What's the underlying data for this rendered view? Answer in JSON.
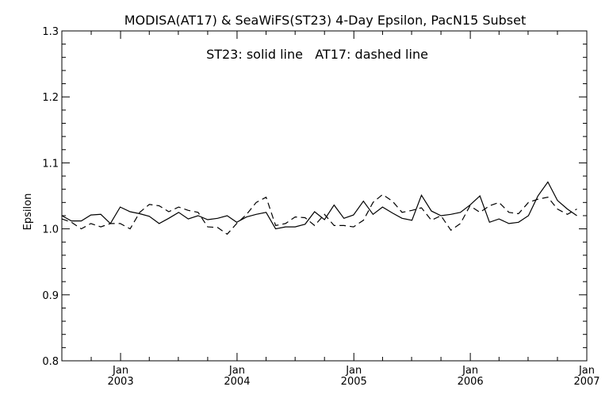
{
  "chart_data": {
    "type": "line",
    "title": "MODISA(AT17) & SeaWiFS(ST23) 4-Day Epsilon, PacN15 Subset",
    "annotation": "ST23: solid line   AT17: dashed line",
    "xlabel": "",
    "ylabel": "Epsilon",
    "xlim": [
      "2002-07-01",
      "2007-01-01"
    ],
    "ylim": [
      0.8,
      1.3
    ],
    "y_ticks": [
      "0.8",
      "0.9",
      "1.0",
      "1.1",
      "1.2",
      "1.3"
    ],
    "x_ticks": [
      {
        "date": "2003-01-01",
        "month": "Jan",
        "year": "2003"
      },
      {
        "date": "2004-01-01",
        "month": "Jan",
        "year": "2004"
      },
      {
        "date": "2005-01-01",
        "month": "Jan",
        "year": "2005"
      },
      {
        "date": "2006-01-01",
        "month": "Jan",
        "year": "2006"
      },
      {
        "date": "2007-01-01",
        "month": "Jan",
        "year": "2007"
      }
    ],
    "grid": false,
    "series": [
      {
        "name": "ST23",
        "style": "solid",
        "color": "#000000",
        "points": [
          [
            "2002-07-01",
            1.02
          ],
          [
            "2002-07-31",
            1.012
          ],
          [
            "2002-08-31",
            1.012
          ],
          [
            "2002-09-30",
            1.021
          ],
          [
            "2002-10-31",
            1.022
          ],
          [
            "2002-11-30",
            1.008
          ],
          [
            "2002-12-31",
            1.033
          ],
          [
            "2003-01-31",
            1.026
          ],
          [
            "2003-03-02",
            1.023
          ],
          [
            "2003-04-01",
            1.019
          ],
          [
            "2003-05-02",
            1.008
          ],
          [
            "2003-06-01",
            1.016
          ],
          [
            "2003-07-02",
            1.025
          ],
          [
            "2003-08-01",
            1.015
          ],
          [
            "2003-09-01",
            1.02
          ],
          [
            "2003-10-01",
            1.014
          ],
          [
            "2003-11-01",
            1.016
          ],
          [
            "2003-12-01",
            1.02
          ],
          [
            "2003-12-31",
            1.01
          ],
          [
            "2004-01-31",
            1.018
          ],
          [
            "2004-03-01",
            1.022
          ],
          [
            "2004-04-01",
            1.025
          ],
          [
            "2004-05-01",
            1.0
          ],
          [
            "2004-06-01",
            1.003
          ],
          [
            "2004-07-01",
            1.003
          ],
          [
            "2004-08-01",
            1.007
          ],
          [
            "2004-08-31",
            1.026
          ],
          [
            "2004-10-01",
            1.014
          ],
          [
            "2004-10-31",
            1.036
          ],
          [
            "2004-12-01",
            1.016
          ],
          [
            "2004-12-31",
            1.021
          ],
          [
            "2005-01-31",
            1.042
          ],
          [
            "2005-03-02",
            1.022
          ],
          [
            "2005-04-01",
            1.033
          ],
          [
            "2005-05-02",
            1.024
          ],
          [
            "2005-06-01",
            1.016
          ],
          [
            "2005-07-02",
            1.013
          ],
          [
            "2005-08-01",
            1.051
          ],
          [
            "2005-09-01",
            1.027
          ],
          [
            "2005-10-01",
            1.02
          ],
          [
            "2005-11-01",
            1.022
          ],
          [
            "2005-12-01",
            1.025
          ],
          [
            "2005-12-31",
            1.036
          ],
          [
            "2006-01-31",
            1.05
          ],
          [
            "2006-03-02",
            1.01
          ],
          [
            "2006-04-01",
            1.015
          ],
          [
            "2006-05-02",
            1.008
          ],
          [
            "2006-06-01",
            1.01
          ],
          [
            "2006-07-02",
            1.02
          ],
          [
            "2006-08-01",
            1.05
          ],
          [
            "2006-09-01",
            1.071
          ],
          [
            "2006-10-01",
            1.043
          ],
          [
            "2006-11-01",
            1.03
          ],
          [
            "2006-12-01",
            1.02
          ]
        ]
      },
      {
        "name": "AT17",
        "style": "dashed",
        "color": "#000000",
        "points": [
          [
            "2002-07-01",
            1.015
          ],
          [
            "2002-07-31",
            1.01
          ],
          [
            "2002-08-31",
            1.0
          ],
          [
            "2002-09-30",
            1.008
          ],
          [
            "2002-10-31",
            1.003
          ],
          [
            "2002-11-30",
            1.008
          ],
          [
            "2002-12-31",
            1.008
          ],
          [
            "2003-01-31",
            1.0
          ],
          [
            "2003-03-02",
            1.025
          ],
          [
            "2003-04-01",
            1.037
          ],
          [
            "2003-05-02",
            1.035
          ],
          [
            "2003-06-01",
            1.026
          ],
          [
            "2003-07-02",
            1.033
          ],
          [
            "2003-08-01",
            1.028
          ],
          [
            "2003-09-01",
            1.025
          ],
          [
            "2003-10-01",
            1.003
          ],
          [
            "2003-11-01",
            1.002
          ],
          [
            "2003-12-01",
            0.992
          ],
          [
            "2003-12-31",
            1.008
          ],
          [
            "2004-01-31",
            1.022
          ],
          [
            "2004-03-01",
            1.04
          ],
          [
            "2004-04-01",
            1.048
          ],
          [
            "2004-05-01",
            1.005
          ],
          [
            "2004-06-01",
            1.008
          ],
          [
            "2004-07-01",
            1.018
          ],
          [
            "2004-08-01",
            1.017
          ],
          [
            "2004-08-31",
            1.005
          ],
          [
            "2004-10-01",
            1.022
          ],
          [
            "2004-10-31",
            1.005
          ],
          [
            "2004-12-01",
            1.005
          ],
          [
            "2004-12-31",
            1.003
          ],
          [
            "2005-01-31",
            1.013
          ],
          [
            "2005-03-02",
            1.04
          ],
          [
            "2005-04-01",
            1.052
          ],
          [
            "2005-05-02",
            1.042
          ],
          [
            "2005-06-01",
            1.025
          ],
          [
            "2005-07-02",
            1.028
          ],
          [
            "2005-08-01",
            1.032
          ],
          [
            "2005-09-01",
            1.013
          ],
          [
            "2005-10-01",
            1.02
          ],
          [
            "2005-11-01",
            0.998
          ],
          [
            "2005-12-01",
            1.008
          ],
          [
            "2005-12-31",
            1.035
          ],
          [
            "2006-01-31",
            1.025
          ],
          [
            "2006-03-02",
            1.035
          ],
          [
            "2006-04-01",
            1.04
          ],
          [
            "2006-05-02",
            1.025
          ],
          [
            "2006-06-01",
            1.023
          ],
          [
            "2006-07-02",
            1.04
          ],
          [
            "2006-08-01",
            1.045
          ],
          [
            "2006-09-01",
            1.048
          ],
          [
            "2006-10-01",
            1.03
          ],
          [
            "2006-11-01",
            1.022
          ],
          [
            "2006-12-01",
            1.03
          ]
        ]
      }
    ]
  }
}
